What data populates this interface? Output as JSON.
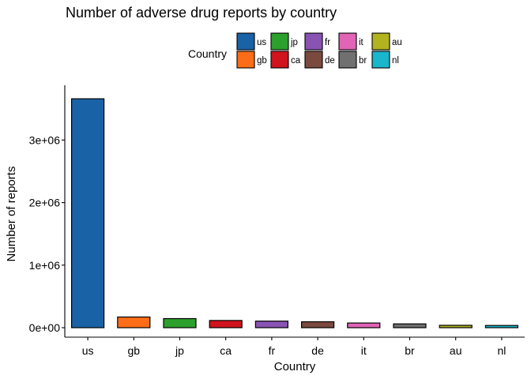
{
  "chart_data": {
    "type": "bar",
    "title": "Number of adverse drug reports by country",
    "xlabel": "Country",
    "ylabel": "Number of reports",
    "categories": [
      "us",
      "gb",
      "jp",
      "ca",
      "fr",
      "de",
      "it",
      "br",
      "au",
      "nl"
    ],
    "values": [
      3660000,
      170000,
      145000,
      115000,
      105000,
      95000,
      75000,
      60000,
      38000,
      35000
    ],
    "colors": [
      "#1a62a6",
      "#fd6d17",
      "#2ca02c",
      "#d1131d",
      "#8953b4",
      "#7b4a3f",
      "#e164b7",
      "#707070",
      "#b2b41f",
      "#1ab7cc"
    ],
    "ylim": [
      0,
      3800000
    ],
    "yticks": [
      0,
      1000000,
      2000000,
      3000000
    ],
    "ytick_labels": [
      "0e+00",
      "1e+06",
      "2e+06",
      "3e+06"
    ],
    "grid": false,
    "legend": {
      "title": "Country",
      "placement": "top",
      "entries": [
        "us",
        "gb",
        "jp",
        "ca",
        "fr",
        "de",
        "it",
        "br",
        "au",
        "nl"
      ]
    }
  }
}
